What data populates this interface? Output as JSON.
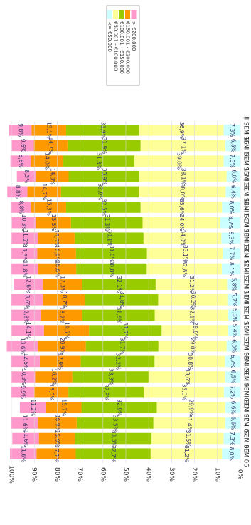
{
  "chart_data": {
    "type": "bar",
    "stacked": true,
    "orientation": "horizontal",
    "rotated_image_degrees": 90,
    "value_axis": {
      "ticks": [
        "0%",
        "10%",
        "20%",
        "30%",
        "40%",
        "50%",
        "60%",
        "70%",
        "80%",
        "90%",
        "100%"
      ],
      "range": [
        0,
        100
      ]
    },
    "categories": [
      "I SEM 06",
      "II SEM 06",
      "I SEM 07",
      "II SEM 07",
      "I SEM 08",
      "II SEM 08",
      "I SEM 09",
      "II SEM 09",
      "I SEM 10",
      "II SEM 10",
      "I SEM 11",
      "II SEM 11",
      "I SEM 12",
      "II SEM 12",
      "I SEM 13",
      "II SEM 13",
      "I SEM 14",
      "II SEM 14",
      "I SEM 15",
      "II SEM 15",
      "I SEM 16",
      "II SEM 16"
    ],
    "legend": {
      "placement": "top-right",
      "entries": [
        "> €200.000",
        "€150.001 - €200.000",
        "€100.001 - €150.000",
        "€50.001 - €100.000",
        "<= €50.000"
      ]
    },
    "series": [
      {
        "name": "<= €50.000",
        "color": "#ccffff",
        "values": [
          8.0,
          7.3,
          6.6,
          6.6,
          7.2,
          6.5,
          6.7,
          6.0,
          5.4,
          5.3,
          5.7,
          5.8,
          8.1,
          7.7,
          8.3,
          8.7,
          8.0,
          6.4,
          6.0,
          7.3,
          6.5,
          7.3
        ],
        "labels": [
          "8,0%",
          "7,3%",
          "6,6%",
          "6,6%",
          "7,2%",
          "6,5%",
          "6,7%",
          "6,0%",
          "5,4%",
          "5,3%",
          "5,7%",
          "5,8%",
          "8,1%",
          "7,7%",
          "8,3%",
          "8,7%",
          "8,0%",
          "6,4%",
          "6,0%",
          "7,3%",
          "6,5%",
          "7,3%"
        ]
      },
      {
        "name": "€50.001 - €100.000",
        "color": "#ffff99",
        "values": [
          31.2,
          31.5,
          31.4,
          29.9,
          35.0,
          33.6,
          30.8,
          29.8,
          29.0,
          32.1,
          30.2,
          31.2,
          32.8,
          33.1,
          34.0,
          34.0,
          35.6,
          38.0,
          38.1,
          39.0,
          37.1,
          36.9
        ],
        "labels": [
          "31,2%",
          "31,5%",
          "31,4%",
          "29,9%",
          "35,0%",
          "33,6%",
          "30,8%",
          "29,8%",
          "29,0%",
          "32,1%",
          "30,2%",
          "31,2%",
          "32,8%",
          "33,1%",
          "34,0%",
          "34,0%",
          "35,6%",
          "38,0%",
          "38,1%",
          "39,0%",
          "37,1%",
          "36,9%"
        ]
      },
      {
        "name": "€100.001 - €150.000",
        "color": "#99cc00",
        "values": [
          32.7,
          33.3,
          33.5,
          32.9,
          32.9,
          33.3,
          32.2,
          31.7,
          31.7,
          31.6,
          31.8,
          32.1,
          30.8,
          31.0,
          30.1,
          31.3,
          32.5,
          33.9,
          30.9,
          31.3,
          31.9,
          31.9
        ],
        "labels": [
          "32,7%",
          "33,3%",
          "33,5%",
          "32,9%",
          "32,9%",
          "33,3%",
          "32,2%",
          "31,7%",
          "31,7%",
          "31,6%",
          "31,8%",
          "32,1%",
          "30,8%",
          "31,0%",
          "30,1%",
          "31,3%",
          "32,5%",
          "33,9%",
          "30,9%",
          "31,3%",
          "31,9%",
          "31,9%"
        ]
      },
      {
        "name": "€150.001 - €200.000",
        "color": "#ff9900",
        "values": [
          17.1,
          15.9,
          16.9,
          15.7,
          15.0,
          16.2,
          17.9,
          20.9,
          19.7,
          18.2,
          18.7,
          17.3,
          16.6,
          16.9,
          16.0,
          15.5,
          15.3,
          14.7,
          14.3,
          14.0,
          14.7,
          15.1
        ],
        "labels": [
          "17,1%",
          "15,9%",
          "16,9%",
          "15,7%",
          "15,0%",
          "16,2%",
          "17,9%",
          "20,9%",
          "19,7%",
          "18,2%",
          "18,7%",
          "17,3%",
          "16,6%",
          "16,9%",
          "16,0%",
          "15,5%",
          "15,3%",
          "14,7%",
          "14,3%",
          "14,0%",
          "14,7%",
          "15,1%"
        ]
      },
      {
        "name": "> €200.000",
        "color": "#ff99cc",
        "values": [
          11.6,
          11.6,
          11.6,
          11.2,
          9.9,
          10.3,
          12.5,
          13.6,
          14.1,
          12.8,
          13.6,
          12.6,
          11.8,
          11.3,
          11.5,
          10.3,
          8.8,
          8.8,
          8.3,
          8.8,
          9.6,
          9.8
        ],
        "labels": [
          "11,6%",
          "11,6%",
          "11,6%",
          "11,2%",
          "9,9%",
          "10,3%",
          "12,5%",
          "13,6%",
          "14,1%",
          "12,8%",
          "13,6%",
          "12,6%",
          "11,8%",
          "11,3%",
          "11,5%",
          "10,3%",
          "8,8%",
          "8,8%",
          "8,3%",
          "8,8%",
          "9,6%",
          "9,8%"
        ]
      }
    ]
  }
}
